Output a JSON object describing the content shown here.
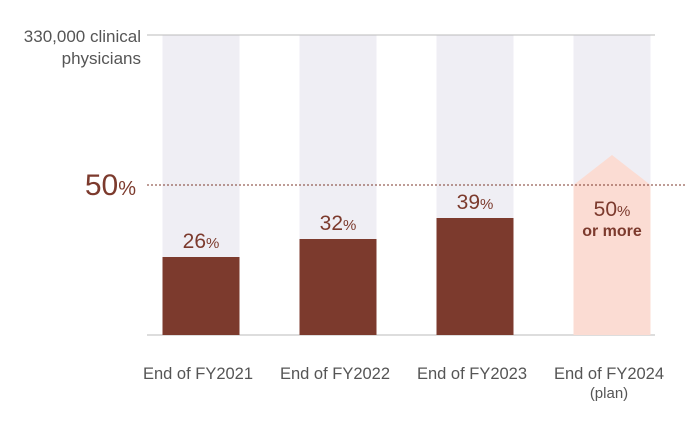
{
  "chart_data": {
    "type": "bar",
    "ylabel_lines": [
      "330,000 clinical",
      "physicians"
    ],
    "ylim": [
      0,
      100
    ],
    "reference_line": {
      "value": 50,
      "number": "50",
      "unit": "%"
    },
    "categories": [
      {
        "label": "End of FY2021",
        "sub": ""
      },
      {
        "label": "End of FY2022",
        "sub": ""
      },
      {
        "label": "End of FY2023",
        "sub": ""
      },
      {
        "label": "End of FY2024",
        "sub": "(plan)"
      }
    ],
    "values": [
      26,
      32,
      39,
      50
    ],
    "value_labels": [
      {
        "number": "26",
        "unit": "%",
        "note": ""
      },
      {
        "number": "32",
        "unit": "%",
        "note": ""
      },
      {
        "number": "39",
        "unit": "%",
        "note": ""
      },
      {
        "number": "50",
        "unit": "%",
        "note": "or more"
      }
    ],
    "planned": [
      false,
      false,
      false,
      true
    ],
    "colors": {
      "bar": "#7c3a2d",
      "plan_bar": "#fbdcd3",
      "track": "#efeef4",
      "axis": "#bbbbbb",
      "reference": "#7c3a2d",
      "value_text": "#7c3a2d",
      "axis_text": "#555555"
    },
    "legend": "none",
    "grid": false
  }
}
